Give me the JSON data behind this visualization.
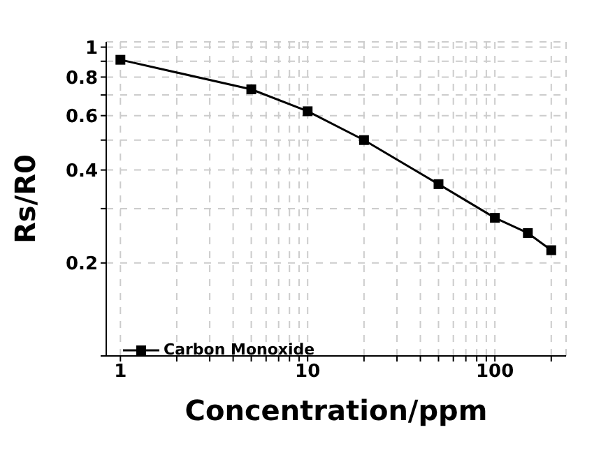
{
  "chart_data": {
    "type": "line",
    "xlabel": "Concentration/ppm",
    "ylabel": "Rs/R0",
    "log": "xy",
    "grid": true,
    "legend": "bottom left",
    "marker": "square",
    "line_style": "solid",
    "x": [
      1,
      5,
      10,
      20,
      50,
      100,
      150,
      200
    ],
    "series": [
      {
        "name": "Carbon Monoxide",
        "color": "#000000",
        "values": [
          0.91,
          0.73,
          0.62,
          0.5,
          0.36,
          0.28,
          0.25,
          0.22
        ]
      }
    ],
    "xlim": [
      0.84,
      240
    ],
    "xticks": [
      1,
      {
        "value": 2,
        "label": null
      },
      {
        "value": 3,
        "label": null
      },
      {
        "value": 4,
        "label": null
      },
      {
        "value": 5,
        "label": null
      },
      {
        "value": 6,
        "label": null
      },
      {
        "value": 7,
        "label": null
      },
      {
        "value": 8,
        "label": null
      },
      {
        "value": 9,
        "label": null
      },
      10,
      {
        "value": 20,
        "label": null
      },
      {
        "value": 30,
        "label": null
      },
      {
        "value": 40,
        "label": null
      },
      {
        "value": 50,
        "label": null
      },
      {
        "value": 60,
        "label": null
      },
      {
        "value": 70,
        "label": null
      },
      {
        "value": 80,
        "label": null
      },
      {
        "value": 90,
        "label": null
      },
      100,
      {
        "value": 200,
        "label": null
      }
    ],
    "ylim": [
      0.1,
      1.04
    ],
    "yticks": [
      {
        "value": 0.1,
        "label": null
      },
      0.2,
      {
        "value": 0.3,
        "label": null
      },
      0.4,
      {
        "value": 0.5,
        "label": null
      },
      0.6,
      {
        "value": 0.7,
        "label": null
      },
      0.8,
      {
        "value": 0.9,
        "label": null
      },
      1
    ]
  }
}
